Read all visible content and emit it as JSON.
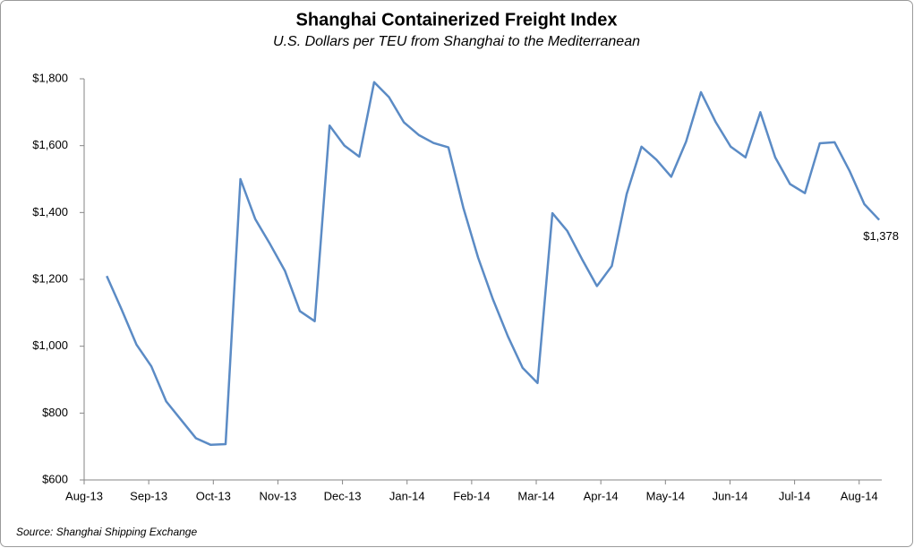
{
  "chart_data": {
    "type": "line",
    "title": "Shanghai Containerized Freight Index",
    "subtitle": "U.S. Dollars per TEU from Shanghai to the Mediterranean",
    "source": "Source: Shanghai Shipping Exchange",
    "x": [
      0.35,
      0.58,
      0.81,
      1.04,
      1.27,
      1.5,
      1.73,
      1.96,
      2.19,
      2.42,
      2.65,
      2.88,
      3.11,
      3.34,
      3.57,
      3.8,
      4.03,
      4.26,
      4.49,
      4.72,
      4.95,
      5.18,
      5.41,
      5.64,
      5.87,
      6.1,
      6.33,
      6.56,
      6.79,
      7.02,
      7.25,
      7.48,
      7.71,
      7.94,
      8.17,
      8.4,
      8.63,
      8.86,
      9.09,
      9.32,
      9.55,
      9.78,
      10.01,
      10.24,
      10.47,
      10.7,
      10.93,
      11.16,
      11.39,
      11.62,
      11.85,
      12.08,
      12.31
    ],
    "series": [
      {
        "name": "Shanghai Containerized Freight Index",
        "color": "#5b8bc5",
        "values": [
          1210,
          1110,
          1005,
          940,
          835,
          780,
          725,
          705,
          707,
          1500,
          1380,
          1305,
          1225,
          1105,
          1075,
          1660,
          1600,
          1567,
          1790,
          1745,
          1670,
          1632,
          1608,
          1595,
          1415,
          1265,
          1140,
          1030,
          935,
          890,
          1398,
          1345,
          1260,
          1180,
          1240,
          1455,
          1597,
          1558,
          1507,
          1612,
          1760,
          1670,
          1597,
          1565,
          1700,
          1565,
          1485,
          1458,
          1607,
          1610,
          1525,
          1425,
          1378
        ],
        "value_labels": [
          null,
          null,
          null,
          null,
          null,
          null,
          null,
          null,
          null,
          null,
          null,
          null,
          null,
          null,
          null,
          null,
          null,
          null,
          null,
          null,
          null,
          null,
          null,
          null,
          null,
          null,
          null,
          null,
          null,
          null,
          null,
          null,
          null,
          null,
          null,
          null,
          null,
          null,
          null,
          null,
          null,
          null,
          null,
          null,
          null,
          null,
          null,
          null,
          null,
          null,
          null,
          null,
          "$1,378"
        ]
      }
    ],
    "xlim": [
      0,
      12.35
    ],
    "xticks": [
      {
        "value": 0,
        "label": "Aug-13"
      },
      {
        "value": 1,
        "label": "Sep-13"
      },
      {
        "value": 2,
        "label": "Oct-13"
      },
      {
        "value": 3,
        "label": "Nov-13"
      },
      {
        "value": 4,
        "label": "Dec-13"
      },
      {
        "value": 5,
        "label": "Jan-14"
      },
      {
        "value": 6,
        "label": "Feb-14"
      },
      {
        "value": 7,
        "label": "Mar-14"
      },
      {
        "value": 8,
        "label": "Apr-14"
      },
      {
        "value": 9,
        "label": "May-14"
      },
      {
        "value": 10,
        "label": "Jun-14"
      },
      {
        "value": 11,
        "label": "Jul-14"
      },
      {
        "value": 12,
        "label": "Aug-14"
      }
    ],
    "ylim": [
      600,
      1800
    ],
    "yticks": [
      {
        "value": 600,
        "label": "$600"
      },
      {
        "value": 800,
        "label": "$800"
      },
      {
        "value": 1000,
        "label": "$1,000"
      },
      {
        "value": 1200,
        "label": "$1,200"
      },
      {
        "value": 1400,
        "label": "$1,400"
      },
      {
        "value": 1600,
        "label": "$1,600"
      },
      {
        "value": 1800,
        "label": "$1,800"
      }
    ],
    "grid": false
  }
}
